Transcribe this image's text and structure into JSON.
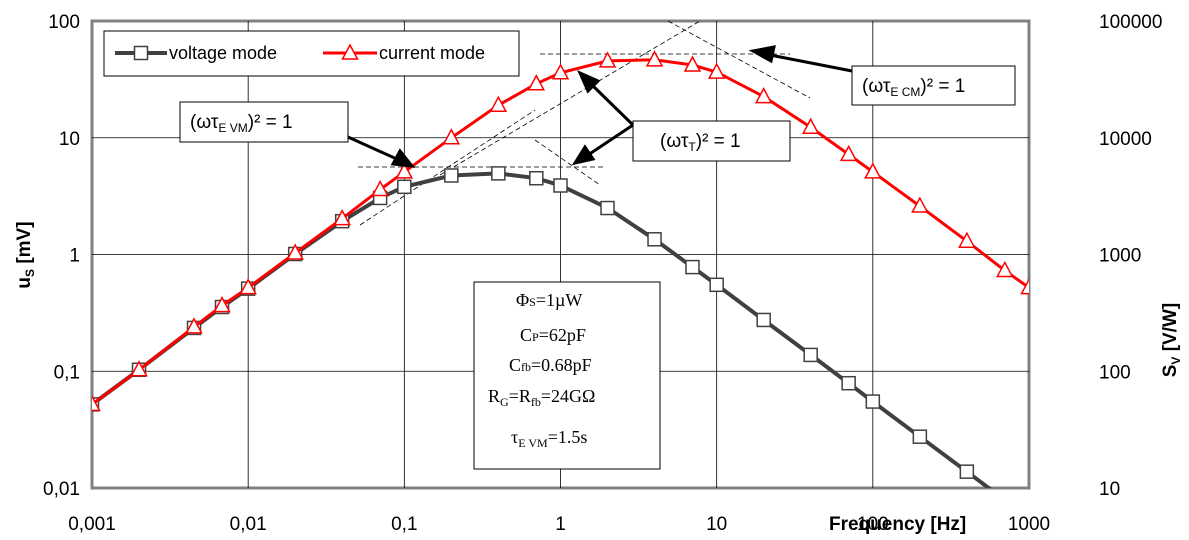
{
  "chart_data": {
    "type": "line",
    "x_scale": "log",
    "y_scale": "log",
    "xlim": [
      0.001,
      1000
    ],
    "ylim_left": [
      0.01,
      100
    ],
    "ylim_right": [
      10,
      100000
    ],
    "x_ticks": [
      "0,001",
      "0,01",
      "0,1",
      "1",
      "10",
      "100",
      "1000"
    ],
    "y_left_ticks": [
      "0,01",
      "0,1",
      "1",
      "10",
      "100"
    ],
    "y_right_ticks": [
      "10",
      "100",
      "1000",
      "10000",
      "100000"
    ],
    "xlabel": "Frequency [Hz]",
    "ylabel_left_main": "u",
    "ylabel_left_sub": "S",
    "ylabel_left_unit": " [mV]",
    "ylabel_right_main": "S",
    "ylabel_right_sub": "V",
    "ylabel_right_unit": " [V/W]",
    "grid": true,
    "legend_position": "top-left",
    "series": [
      {
        "name": "voltage mode",
        "axis": "left",
        "color": "#404040",
        "marker": "square",
        "points": [
          [
            0.001,
            0.052
          ],
          [
            0.002,
            0.103
          ],
          [
            0.0045,
            0.235
          ],
          [
            0.0068,
            0.355
          ],
          [
            0.01,
            0.51
          ],
          [
            0.02,
            1.01
          ],
          [
            0.04,
            1.93
          ],
          [
            0.07,
            3.05
          ],
          [
            0.1,
            3.8
          ],
          [
            0.2,
            4.75
          ],
          [
            0.4,
            4.95
          ],
          [
            0.7,
            4.5
          ],
          [
            1.0,
            3.9
          ],
          [
            2.0,
            2.5
          ],
          [
            4.0,
            1.35
          ],
          [
            7.0,
            0.78
          ],
          [
            10.0,
            0.55
          ],
          [
            20.0,
            0.275
          ],
          [
            40.0,
            0.138
          ],
          [
            70.0,
            0.079
          ],
          [
            100.0,
            0.055
          ],
          [
            200.0,
            0.0275
          ],
          [
            400.0,
            0.0138
          ],
          [
            700.0,
            0.0079
          ]
        ]
      },
      {
        "name": "current mode",
        "axis": "right",
        "color": "#ff0000",
        "marker": "triangle",
        "points": [
          [
            0.001,
            52
          ],
          [
            0.002,
            103
          ],
          [
            0.0045,
            240
          ],
          [
            0.0068,
            365
          ],
          [
            0.01,
            520
          ],
          [
            0.02,
            1030
          ],
          [
            0.04,
            2030
          ],
          [
            0.07,
            3600
          ],
          [
            0.1,
            5100
          ],
          [
            0.2,
            10000
          ],
          [
            0.4,
            19000
          ],
          [
            0.7,
            29000
          ],
          [
            1.0,
            36000
          ],
          [
            2.0,
            45500
          ],
          [
            4.0,
            46500
          ],
          [
            7.0,
            42000
          ],
          [
            10.0,
            36500
          ],
          [
            20.0,
            22500
          ],
          [
            40.0,
            12300
          ],
          [
            70.0,
            7200
          ],
          [
            100.0,
            5100
          ],
          [
            200.0,
            2600
          ],
          [
            400.0,
            1300
          ],
          [
            700.0,
            730
          ],
          [
            1000.0,
            520
          ]
        ]
      }
    ],
    "annotations": {
      "vm_corner_main": "(ωτ",
      "vm_corner_sub": "E VM",
      "vm_corner_tail": ")² = 1",
      "t_corner_main": "(ωτ",
      "t_corner_sub": "T",
      "t_corner_tail": ")² = 1",
      "cm_corner_main": "(ωτ",
      "cm_corner_sub": "E CM",
      "cm_corner_tail": ")² = 1"
    },
    "parameters": {
      "phi_main": "Φ",
      "phi_sub": "S",
      "phi_val": "=1µW",
      "cp_main": "C",
      "cp_sub": "P",
      "cp_val": "=62pF",
      "cfb_main": "C",
      "cfb_sub": "fb",
      "cfb_val": "=0.68pF",
      "rg_main": "R",
      "rg_sub": "G",
      "rg_mid": "=R",
      "rg_sub2": "fb",
      "rg_val": "=24GΩ",
      "tau_main": "τ",
      "tau_sub": "E VM",
      "tau_val": "=1.5s"
    }
  }
}
